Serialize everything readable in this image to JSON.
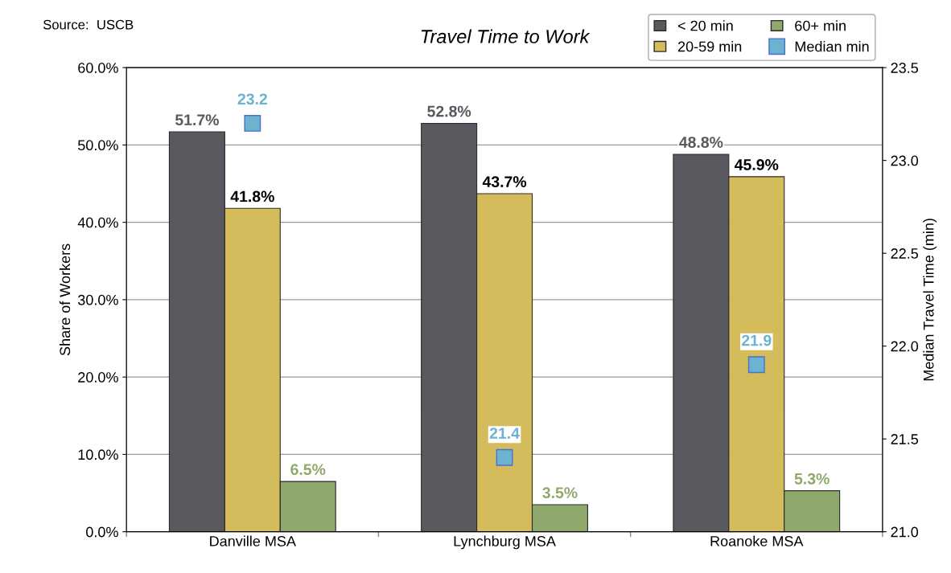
{
  "chart_data": {
    "type": "bar",
    "title": "Travel Time to Work",
    "ylabel": "Share of Workers",
    "y2label": "Median Travel Time (min)",
    "annotations": [
      "Source:  USCB"
    ],
    "categories": [
      "Danville MSA",
      "Lynchburg MSA",
      "Roanoke MSA"
    ],
    "series": [
      {
        "name": "< 20 min",
        "color": "#5a5960",
        "values": [
          51.7,
          52.8,
          48.8
        ],
        "value_labels": [
          "51.7%",
          "52.8%",
          "48.8%"
        ]
      },
      {
        "name": "20-59 min",
        "color": "#d4bc5c",
        "values": [
          41.8,
          43.7,
          45.9
        ],
        "value_labels": [
          "41.8%",
          "43.7%",
          "45.9%"
        ]
      },
      {
        "name": "60+ min",
        "color": "#8fa96c",
        "values": [
          6.5,
          3.5,
          5.3
        ],
        "value_labels": [
          "6.5%",
          "3.5%",
          "5.3%"
        ]
      },
      {
        "name": "Median min",
        "type": "scatter",
        "axis": "y2",
        "marker": "square",
        "color": "#6bb3cf",
        "values": [
          23.2,
          21.4,
          21.9
        ],
        "value_labels": [
          "23.2",
          "21.4",
          "21.9"
        ]
      }
    ],
    "ylim": [
      0,
      60
    ],
    "yticks": [
      {
        "value": 0,
        "label": "0.0%"
      },
      {
        "value": 10,
        "label": "10.0%"
      },
      {
        "value": 20,
        "label": "20.0%"
      },
      {
        "value": 30,
        "label": "30.0%"
      },
      {
        "value": 40,
        "label": "40.0%"
      },
      {
        "value": 50,
        "label": "50.0%"
      },
      {
        "value": 60,
        "label": "60.0%"
      }
    ],
    "y2lim": [
      21.0,
      23.5
    ],
    "y2ticks": [
      {
        "value": 21.0,
        "label": "21.0"
      },
      {
        "value": 21.5,
        "label": "21.5"
      },
      {
        "value": 22.0,
        "label": "22.0"
      },
      {
        "value": 22.5,
        "label": "22.5"
      },
      {
        "value": 23.0,
        "label": "23.0"
      },
      {
        "value": 23.5,
        "label": "23.5"
      }
    ],
    "grid": "y",
    "legend": "top right"
  }
}
